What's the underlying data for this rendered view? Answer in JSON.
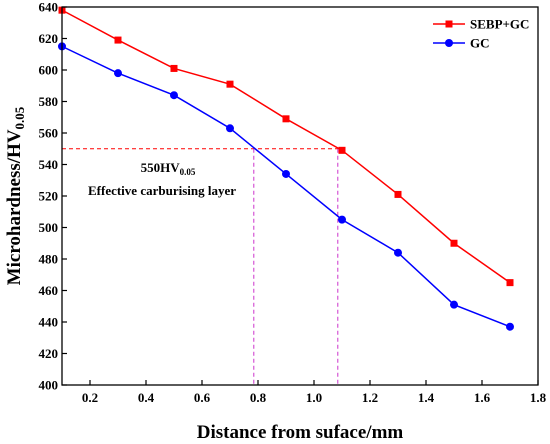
{
  "chart_data": {
    "type": "line",
    "xlabel": "Distance from suface/mm",
    "ylabel": "Microhardness/HV",
    "ylabel_sub": "0.05",
    "xlim": [
      0.1,
      1.8
    ],
    "ylim": [
      400,
      640
    ],
    "xticks": [
      0.2,
      0.4,
      0.6,
      0.8,
      1.0,
      1.2,
      1.4,
      1.6,
      1.8
    ],
    "xtick_labels": [
      "0.2",
      "0.4",
      "0.6",
      "0.8",
      "1.0",
      "1.2",
      "1.4",
      "1.6",
      "1.8"
    ],
    "yticks": [
      400,
      420,
      440,
      460,
      480,
      500,
      520,
      540,
      560,
      580,
      600,
      620,
      640
    ],
    "ytick_labels": [
      "400",
      "420",
      "440",
      "460",
      "480",
      "500",
      "520",
      "540",
      "560",
      "580",
      "600",
      "620",
      "640"
    ],
    "grid": false,
    "legend_position": "top-right",
    "x": [
      0.1,
      0.3,
      0.5,
      0.7,
      0.9,
      1.1,
      1.3,
      1.5,
      1.7
    ],
    "series": [
      {
        "name": "SEBP+GC",
        "color": "#ff0000",
        "marker": "square",
        "values": [
          638,
          619,
          601,
          591,
          569,
          549,
          521,
          490,
          465
        ]
      },
      {
        "name": "GC",
        "color": "#0000ff",
        "marker": "circle",
        "values": [
          615,
          598,
          584,
          563,
          534,
          505,
          484,
          451,
          437
        ]
      }
    ],
    "reference": {
      "y": 550,
      "x_intersections": [
        0.785,
        1.085
      ],
      "hline_color": "#ff0000",
      "vline_color": "#cc33cc",
      "label_main": "550",
      "label_unit": "HV",
      "label_sub": "0.05",
      "label_caption": "Effective carburising layer"
    }
  }
}
